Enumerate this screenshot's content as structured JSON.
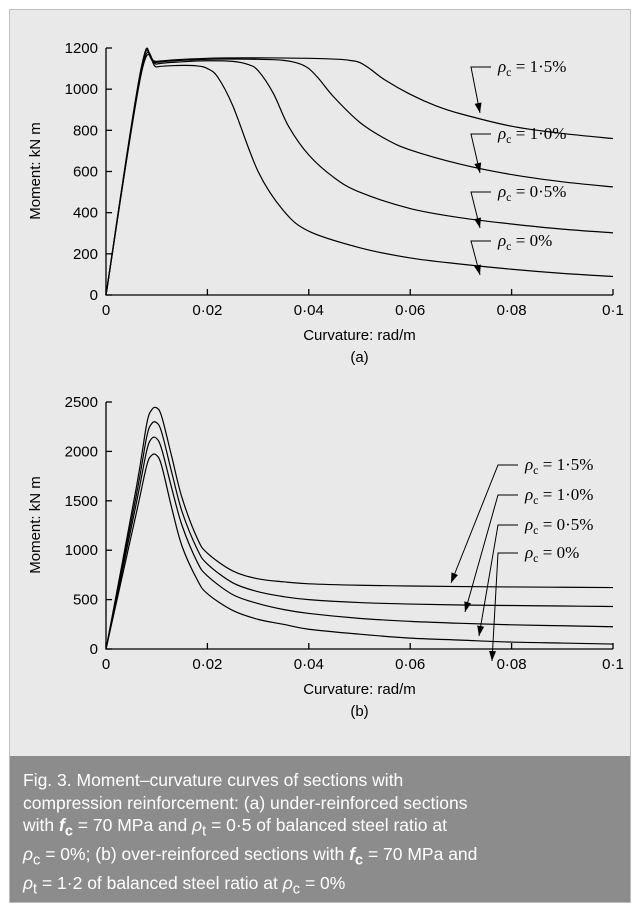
{
  "chart_data": [
    {
      "type": "line",
      "panel_label": "(a)",
      "xlabel": "Curvature: rad/m",
      "ylabel": "Moment: kN m",
      "xlim": [
        0,
        0.1
      ],
      "ylim": [
        0,
        1200
      ],
      "x_ticks": [
        0,
        0.02,
        0.04,
        0.06,
        0.08,
        0.1
      ],
      "x_tick_labels": [
        "0",
        "0·02",
        "0·04",
        "0·06",
        "0·08",
        "0·1"
      ],
      "y_ticks": [
        0,
        200,
        400,
        600,
        800,
        1000,
        1200
      ],
      "y_tick_labels": [
        "0",
        "200",
        "400",
        "600",
        "800",
        "1000",
        "1200"
      ],
      "grid": false,
      "series": [
        {
          "name": "ρc = 0%",
          "x": [
            0,
            0.007,
            0.01,
            0.014,
            0.018,
            0.02,
            0.022,
            0.025,
            0.03,
            0.035,
            0.04,
            0.05,
            0.06,
            0.07,
            0.08,
            0.09,
            0.1
          ],
          "y": [
            0,
            1080,
            1108,
            1115,
            1113,
            1100,
            1060,
            920,
            600,
            410,
            310,
            230,
            180,
            150,
            125,
            105,
            90
          ]
        },
        {
          "name": "ρc = 0·5%",
          "x": [
            0,
            0.007,
            0.01,
            0.015,
            0.02,
            0.025,
            0.028,
            0.03,
            0.033,
            0.036,
            0.04,
            0.045,
            0.05,
            0.06,
            0.07,
            0.08,
            0.09,
            0.1
          ],
          "y": [
            0,
            1090,
            1122,
            1133,
            1138,
            1135,
            1120,
            1090,
            980,
            820,
            680,
            570,
            500,
            420,
            375,
            345,
            320,
            302
          ]
        },
        {
          "name": "ρc = 1·0%",
          "x": [
            0,
            0.007,
            0.01,
            0.02,
            0.03,
            0.035,
            0.038,
            0.04,
            0.042,
            0.045,
            0.05,
            0.055,
            0.06,
            0.07,
            0.08,
            0.09,
            0.1
          ],
          "y": [
            0,
            1100,
            1130,
            1145,
            1145,
            1140,
            1125,
            1100,
            1050,
            960,
            840,
            760,
            705,
            635,
            585,
            550,
            525
          ]
        },
        {
          "name": "ρc = 1·5%",
          "x": [
            0,
            0.007,
            0.01,
            0.02,
            0.03,
            0.04,
            0.046,
            0.048,
            0.05,
            0.052,
            0.055,
            0.06,
            0.065,
            0.07,
            0.08,
            0.09,
            0.1
          ],
          "y": [
            0,
            1110,
            1135,
            1150,
            1152,
            1150,
            1145,
            1140,
            1130,
            1100,
            1045,
            975,
            920,
            880,
            820,
            785,
            760
          ]
        }
      ],
      "annotations": [
        "ρc = 1·5%",
        "ρc = 1·0%",
        "ρc = 0·5%",
        "ρc = 0%"
      ]
    },
    {
      "type": "line",
      "panel_label": "(b)",
      "xlabel": "Curvature: rad/m",
      "ylabel": "Moment: kN m",
      "xlim": [
        0,
        0.1
      ],
      "ylim": [
        0,
        2500
      ],
      "x_ticks": [
        0,
        0.02,
        0.04,
        0.06,
        0.08,
        0.1
      ],
      "x_tick_labels": [
        "0",
        "0·02",
        "0·04",
        "0·06",
        "0·08",
        "0·1"
      ],
      "y_ticks": [
        0,
        500,
        1000,
        1500,
        2000,
        2500
      ],
      "y_tick_labels": [
        "0",
        "500",
        "1000",
        "1500",
        "2000",
        "2500"
      ],
      "grid": false,
      "series": [
        {
          "name": "ρc = 0%",
          "x": [
            0,
            0.006,
            0.008,
            0.009,
            0.01,
            0.011,
            0.013,
            0.015,
            0.018,
            0.02,
            0.025,
            0.03,
            0.035,
            0.04,
            0.05,
            0.06,
            0.07,
            0.08,
            0.09,
            0.1
          ],
          "y": [
            0,
            1380,
            1850,
            1960,
            1960,
            1850,
            1420,
            1040,
            700,
            560,
            390,
            300,
            250,
            200,
            150,
            110,
            90,
            70,
            60,
            50
          ]
        },
        {
          "name": "ρc = 0·5%",
          "x": [
            0,
            0.006,
            0.008,
            0.009,
            0.01,
            0.011,
            0.013,
            0.015,
            0.018,
            0.02,
            0.025,
            0.03,
            0.035,
            0.04,
            0.05,
            0.06,
            0.07,
            0.08,
            0.09,
            0.1
          ],
          "y": [
            0,
            1480,
            2000,
            2130,
            2130,
            2020,
            1620,
            1250,
            880,
            740,
            550,
            460,
            400,
            360,
            310,
            280,
            260,
            245,
            235,
            225
          ]
        },
        {
          "name": "ρc = 1·0%",
          "x": [
            0,
            0.006,
            0.008,
            0.009,
            0.01,
            0.011,
            0.013,
            0.015,
            0.018,
            0.02,
            0.025,
            0.03,
            0.035,
            0.04,
            0.05,
            0.06,
            0.07,
            0.08,
            0.09,
            0.1
          ],
          "y": [
            0,
            1560,
            2140,
            2280,
            2290,
            2190,
            1780,
            1390,
            1010,
            860,
            670,
            580,
            530,
            500,
            470,
            455,
            445,
            440,
            435,
            430
          ]
        },
        {
          "name": "ρc = 1·5%",
          "x": [
            0,
            0.006,
            0.008,
            0.009,
            0.01,
            0.011,
            0.013,
            0.015,
            0.018,
            0.02,
            0.025,
            0.03,
            0.035,
            0.04,
            0.05,
            0.06,
            0.07,
            0.08,
            0.09,
            0.1
          ],
          "y": [
            0,
            1640,
            2270,
            2420,
            2440,
            2350,
            1940,
            1530,
            1120,
            970,
            790,
            710,
            680,
            660,
            645,
            638,
            632,
            628,
            625,
            622
          ]
        }
      ],
      "annotations": [
        "ρc = 1·5%",
        "ρc = 1·0%",
        "ρc = 0·5%",
        "ρc = 0%"
      ]
    }
  ],
  "caption": {
    "line1": "Fig. 3. Moment–curvature curves of sections with",
    "line2": "compression reinforcement: (a) under-reinforced sections",
    "line3_a": "with ",
    "line3_f": "f",
    "line3_fsub": "c",
    "line3_b": " = 70 MPa and ",
    "line3_rho": "ρ",
    "line3_rhosub": "t",
    "line3_c": " = 0·5 of balanced steel ratio at",
    "line4_rho": "ρ",
    "line4_rhosub": "c",
    "line4_a": " = 0%; (b) over-reinforced sections with ",
    "line4_f": "f",
    "line4_fsub": "c",
    "line4_b": " = 70 MPa and",
    "line5_rho": "ρ",
    "line5_rhosub": "t",
    "line5_a": " = 1·2 of balanced steel ratio at ",
    "line5_rho2": "ρ",
    "line5_rho2sub": "c",
    "line5_b": " = 0%"
  }
}
